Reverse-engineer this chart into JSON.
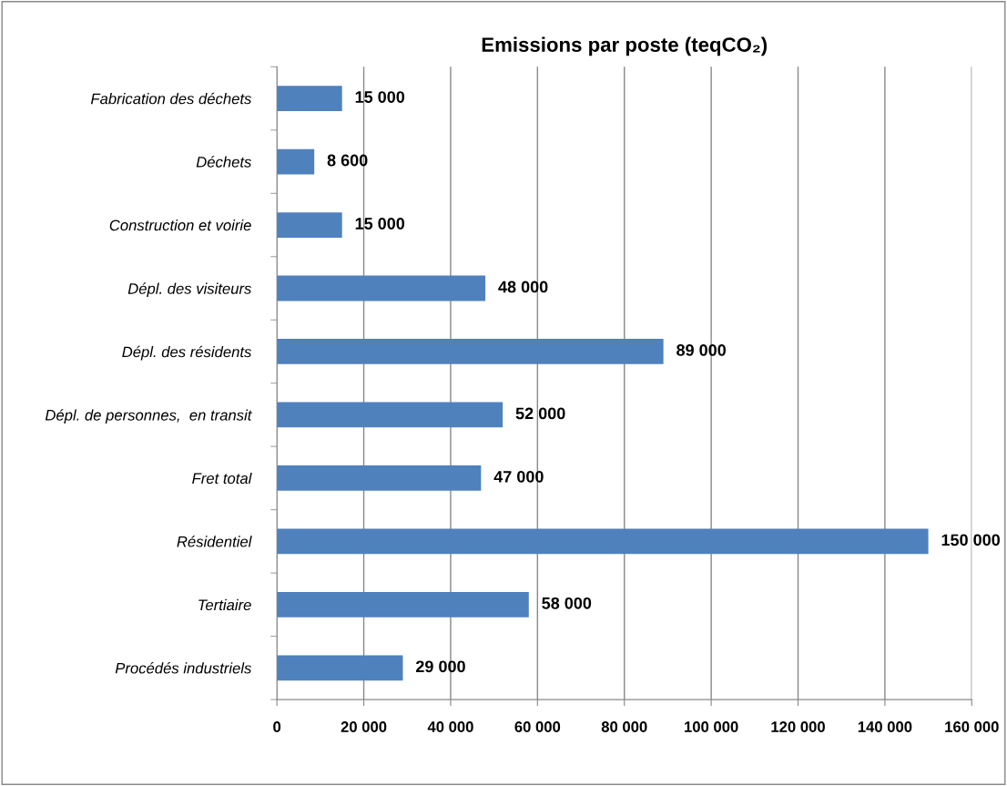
{
  "chart_data": {
    "type": "bar",
    "orientation": "horizontal",
    "title": "Emissions par poste (teqCO₂)",
    "categories": [
      "Fabrication des déchets",
      "Déchets",
      "Construction et voirie",
      "Dépl. des visiteurs",
      "Dépl. des résidents",
      "Dépl. de personnes,  en transit",
      "Fret total",
      "Résidentiel",
      "Tertiaire",
      "Procédés industriels"
    ],
    "values": [
      15000,
      8600,
      15000,
      48000,
      89000,
      52000,
      47000,
      150000,
      58000,
      29000
    ],
    "value_labels": [
      "15 000",
      "8 600",
      "15 000",
      "48 000",
      "89 000",
      "52 000",
      "47 000",
      "150 000",
      "58 000",
      "29 000"
    ],
    "color": "#4f81bd",
    "xlim": [
      0,
      160000
    ],
    "xticks": [
      0,
      {
        "value": 20000,
        "label": "20 000"
      },
      {
        "value": 40000,
        "label": "40 000"
      },
      {
        "value": 60000,
        "label": "60 000"
      },
      {
        "value": 80000,
        "label": "80 000"
      },
      {
        "value": 100000,
        "label": "100 000"
      },
      {
        "value": 120000,
        "label": "120 000"
      },
      {
        "value": 140000,
        "label": "140 000"
      },
      {
        "value": 160000,
        "label": "160 000"
      }
    ],
    "grid": "x"
  }
}
